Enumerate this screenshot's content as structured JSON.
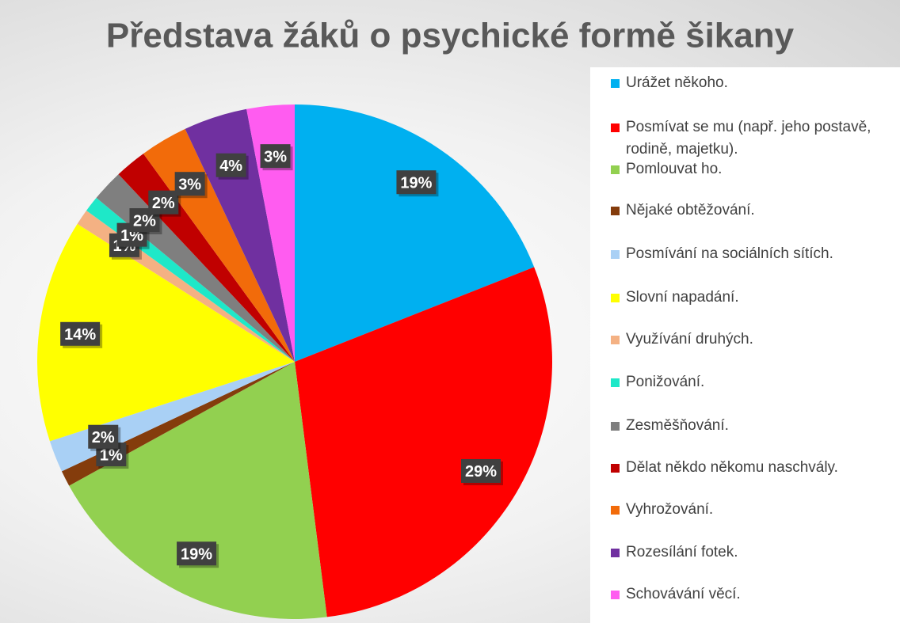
{
  "chart_data": {
    "type": "pie",
    "title": "Představa žáků o psychické formě šikany",
    "categories": [
      "Urážet někoho.",
      "Posmívat se mu (např. jeho postavě, rodině, majetku).",
      "Pomlouvat ho.",
      "Nějaké obtěžování.",
      "Posmívání na sociálních sítích.",
      "Slovní napadání.",
      "Využívání druhých.",
      "Ponižování.",
      "Zesměšňování.",
      "Dělat někdo někomu naschvály.",
      "Vyhrožování.",
      "Rozesílání fotek.",
      "Schovávání věcí."
    ],
    "values": [
      19,
      29,
      19,
      1,
      2,
      14,
      1,
      1,
      2,
      2,
      3,
      4,
      3
    ],
    "value_labels": [
      "19%",
      "29%",
      "19%",
      "1%",
      "2%",
      "14%",
      "1%",
      "1%",
      "2%",
      "2%",
      "3%",
      "4%",
      "3%"
    ],
    "colors": [
      "#00b0f0",
      "#ff0000",
      "#92d050",
      "#843c0c",
      "#a9d0f5",
      "#ffff00",
      "#f4b183",
      "#1ee8c8",
      "#7f7f7f",
      "#c00000",
      "#f26b0a",
      "#7030a0",
      "#ff5cf0"
    ],
    "legend": "right"
  }
}
